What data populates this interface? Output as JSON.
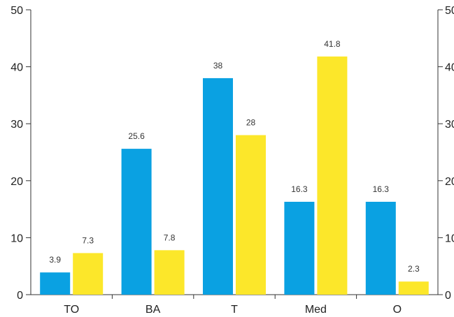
{
  "chart_data": {
    "type": "bar",
    "categories": [
      "TO",
      "BA",
      "T",
      "Med",
      "O"
    ],
    "series": [
      {
        "values": [
          3.9,
          25.6,
          38,
          16.3,
          16.3
        ],
        "color": "#0AA1E2"
      },
      {
        "values": [
          7.3,
          7.8,
          28,
          41.8,
          2.3
        ],
        "color": "#FCE72A"
      }
    ],
    "ylim": [
      0,
      50
    ],
    "yticks": [
      0,
      10,
      20,
      30,
      40,
      50
    ],
    "secondary_axis": true,
    "data_labels": true,
    "grid": false
  }
}
